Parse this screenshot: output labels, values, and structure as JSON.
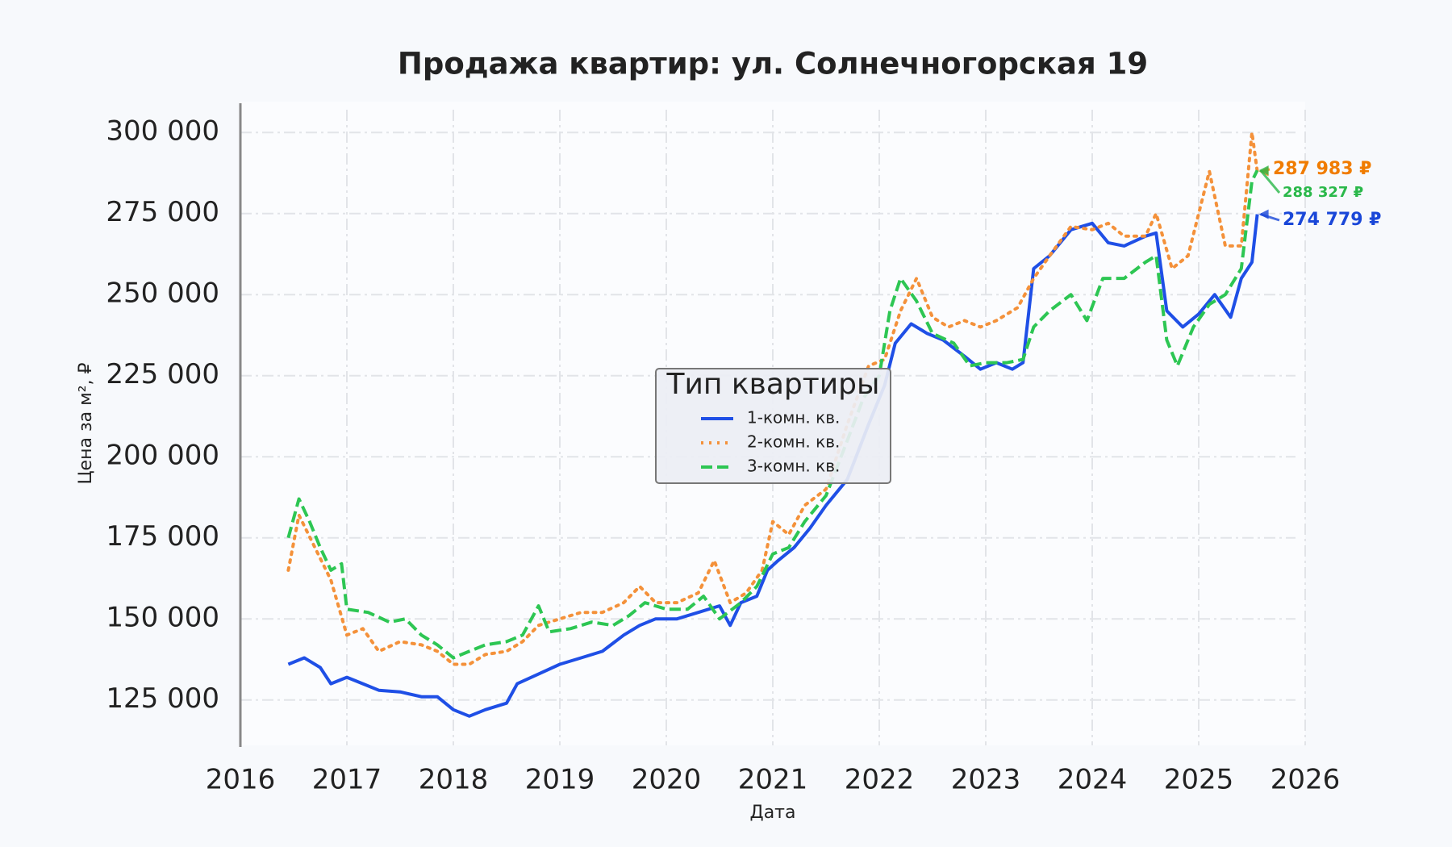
{
  "chart_data": {
    "type": "line",
    "title": "Продажа квартир: ул. Солнечногорская 19",
    "x_label": "Дата",
    "y_label": "Цена за м², ₽",
    "xlim": [
      2016,
      2026
    ],
    "xticks": [
      2016,
      2017,
      2018,
      2019,
      2020,
      2021,
      2022,
      2023,
      2024,
      2025,
      2026
    ],
    "ylim": [
      111000,
      309500
    ],
    "yticks": [
      {
        "value": 125000,
        "label": "125 000"
      },
      {
        "value": 150000,
        "label": "150 000"
      },
      {
        "value": 175000,
        "label": "175 000"
      },
      {
        "value": 200000,
        "label": "200 000"
      },
      {
        "value": 225000,
        "label": "225 000"
      },
      {
        "value": 250000,
        "label": "250 000"
      },
      {
        "value": 275000,
        "label": "275 000"
      },
      {
        "value": 300000,
        "label": "300 000"
      }
    ],
    "grid": true,
    "legend": {
      "title": "Тип квартиры",
      "position": "center"
    },
    "series": [
      {
        "name": "1-комн. кв.",
        "color": "#1f4fe6",
        "linestyle": "solid",
        "x": [
          2016.45,
          2016.6,
          2016.75,
          2016.85,
          2017.0,
          2017.15,
          2017.3,
          2017.5,
          2017.7,
          2017.85,
          2018.0,
          2018.15,
          2018.3,
          2018.5,
          2018.6,
          2018.8,
          2019.0,
          2019.2,
          2019.4,
          2019.6,
          2019.75,
          2019.9,
          2020.1,
          2020.3,
          2020.5,
          2020.6,
          2020.7,
          2020.85,
          2020.95,
          2021.05,
          2021.2,
          2021.35,
          2021.5,
          2021.7,
          2021.9,
          2022.05,
          2022.15,
          2022.3,
          2022.45,
          2022.6,
          2022.8,
          2022.95,
          2023.1,
          2023.25,
          2023.35,
          2023.45,
          2023.6,
          2023.8,
          2024.0,
          2024.15,
          2024.3,
          2024.5,
          2024.6,
          2024.7,
          2024.85,
          2025.0,
          2025.15,
          2025.3,
          2025.4,
          2025.5,
          2025.55
        ],
        "values": [
          136000,
          138000,
          135000,
          130000,
          132000,
          130000,
          128000,
          127500,
          126000,
          126000,
          122000,
          120000,
          122000,
          124000,
          130000,
          133000,
          136000,
          138000,
          140000,
          145000,
          148000,
          150000,
          150000,
          152000,
          154000,
          148000,
          155000,
          157000,
          165000,
          168000,
          172000,
          178000,
          185000,
          193000,
          210000,
          222000,
          235000,
          241000,
          238000,
          236000,
          231000,
          227000,
          229000,
          227000,
          229000,
          258000,
          262000,
          270000,
          272000,
          266000,
          265000,
          268000,
          269000,
          245000,
          240000,
          244000,
          250000,
          243000,
          255000,
          260000,
          274779
        ]
      },
      {
        "name": "2-комн. кв.",
        "color": "#f4913a",
        "linestyle": "dotted",
        "x": [
          2016.45,
          2016.55,
          2016.7,
          2016.85,
          2017.0,
          2017.15,
          2017.3,
          2017.5,
          2017.7,
          2017.85,
          2018.0,
          2018.15,
          2018.3,
          2018.5,
          2018.65,
          2018.8,
          2019.0,
          2019.2,
          2019.4,
          2019.6,
          2019.75,
          2019.9,
          2020.1,
          2020.3,
          2020.45,
          2020.6,
          2020.75,
          2020.9,
          2021.0,
          2021.15,
          2021.3,
          2021.5,
          2021.7,
          2021.9,
          2022.05,
          2022.2,
          2022.35,
          2022.5,
          2022.65,
          2022.8,
          2022.95,
          2023.1,
          2023.3,
          2023.45,
          2023.6,
          2023.8,
          2024.0,
          2024.15,
          2024.3,
          2024.5,
          2024.6,
          2024.75,
          2024.9,
          2025.0,
          2025.1,
          2025.25,
          2025.4,
          2025.5,
          2025.55
        ],
        "values": [
          165000,
          182000,
          172000,
          162000,
          145000,
          147000,
          140000,
          143000,
          142000,
          140000,
          136000,
          136000,
          139000,
          140000,
          143000,
          148000,
          150000,
          152000,
          152000,
          155000,
          160000,
          155000,
          155000,
          158000,
          168000,
          155000,
          158000,
          165000,
          180000,
          176000,
          185000,
          190000,
          210000,
          228000,
          230000,
          245000,
          255000,
          243000,
          240000,
          242000,
          240000,
          242000,
          246000,
          255000,
          262000,
          271000,
          270000,
          272000,
          268000,
          268000,
          275000,
          258000,
          262000,
          275000,
          288000,
          265000,
          265000,
          300000,
          287983
        ]
      },
      {
        "name": "3-комн. кв.",
        "color": "#2dc653",
        "linestyle": "dashed",
        "x": [
          2016.45,
          2016.55,
          2016.65,
          2016.75,
          2016.85,
          2016.95,
          2017.0,
          2017.2,
          2017.4,
          2017.55,
          2017.7,
          2017.85,
          2018.0,
          2018.15,
          2018.3,
          2018.5,
          2018.65,
          2018.8,
          2018.9,
          2019.1,
          2019.3,
          2019.5,
          2019.65,
          2019.8,
          2020.0,
          2020.2,
          2020.35,
          2020.5,
          2020.7,
          2020.85,
          2021.0,
          2021.15,
          2021.3,
          2021.5,
          2021.7,
          2021.85,
          2022.0,
          2022.1,
          2022.2,
          2022.35,
          2022.5,
          2022.7,
          2022.85,
          2023.0,
          2023.2,
          2023.35,
          2023.45,
          2023.6,
          2023.8,
          2023.95,
          2024.1,
          2024.3,
          2024.5,
          2024.6,
          2024.7,
          2024.8,
          2024.95,
          2025.1,
          2025.25,
          2025.4,
          2025.5,
          2025.55
        ],
        "values": [
          175000,
          187000,
          180000,
          172000,
          165000,
          167000,
          153000,
          152000,
          149000,
          150000,
          145000,
          142000,
          138000,
          140000,
          142000,
          143000,
          145000,
          154000,
          146000,
          147000,
          149000,
          148000,
          151000,
          155000,
          153000,
          153000,
          157000,
          150000,
          155000,
          160000,
          170000,
          172000,
          180000,
          188000,
          205000,
          218000,
          225000,
          245000,
          255000,
          248000,
          238000,
          235000,
          228000,
          229000,
          229000,
          230000,
          240000,
          245000,
          250000,
          242000,
          255000,
          255000,
          260000,
          262000,
          236000,
          228000,
          240000,
          247000,
          250000,
          258000,
          285000,
          288327
        ]
      }
    ],
    "annotations": [
      {
        "text": "287 983 ₽",
        "x": 2025.55,
        "y": 287983,
        "color": "#f07c00"
      },
      {
        "text": "288 327 ₽",
        "x": 2025.55,
        "y": 288327,
        "color": "#2ab84a"
      },
      {
        "text": "274 779 ₽",
        "x": 2025.55,
        "y": 274779,
        "color": "#1a47d8"
      }
    ]
  }
}
